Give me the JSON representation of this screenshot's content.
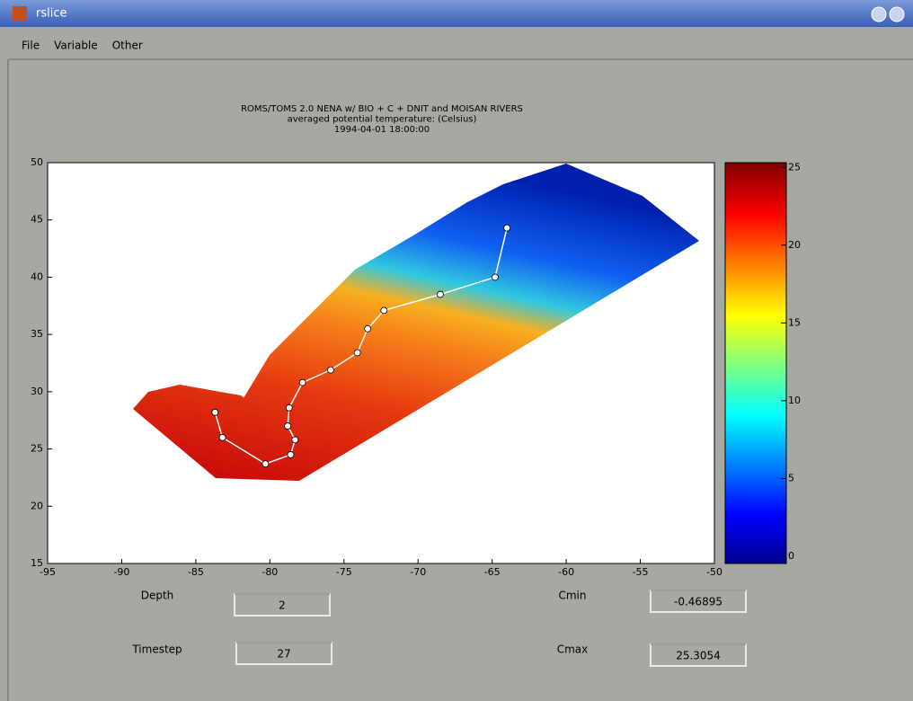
{
  "window": {
    "title": "rslice"
  },
  "menu": [
    "File",
    "Variable",
    "Other"
  ],
  "chart_data": {
    "type": "map",
    "title": [
      "ROMS/TOMS 2.0 NENA w/ BIO + C + DNIT and MOISAN RIVERS",
      "averaged potential temperature: (Celsius)",
      "1994-04-01 18:00:00"
    ],
    "xlim": [
      -95,
      -50
    ],
    "xticks": [
      -95,
      -90,
      -85,
      -80,
      -75,
      -70,
      -65,
      -60,
      -55,
      -50
    ],
    "ylim": [
      15,
      50
    ],
    "yticks": [
      15,
      20,
      25,
      30,
      35,
      40,
      45,
      50
    ],
    "track": {
      "color": "#ffffff",
      "x": [
        -83.7,
        -83.2,
        -80.3,
        -78.6,
        -78.3,
        -78.8,
        -78.7,
        -77.8,
        -75.9,
        -74.1,
        -73.4,
        -72.3,
        -68.5,
        -64.8,
        -64.0
      ],
      "y": [
        28.2,
        26.0,
        23.7,
        24.5,
        25.8,
        27.0,
        28.6,
        30.8,
        31.9,
        33.4,
        35.5,
        37.1,
        38.5,
        40.0,
        44.3
      ]
    },
    "colorbar": {
      "ylim": [
        -0.46895,
        25.3054
      ],
      "yticks": [
        0,
        5,
        10,
        15,
        20,
        25
      ]
    }
  },
  "controls": [
    {
      "label": "Depth",
      "value": "2"
    },
    {
      "label": "Timestep",
      "value": "27"
    },
    {
      "label": "Cmin",
      "value": "-0.46895"
    },
    {
      "label": "Cmax",
      "value": "25.3054"
    }
  ]
}
